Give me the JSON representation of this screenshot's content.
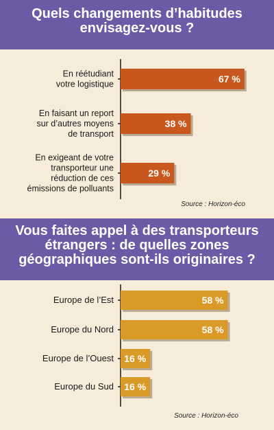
{
  "colors": {
    "background": "#f7ecda",
    "header": "#6b5aa6",
    "bar_chart1": "#c8581e",
    "bar_chart2": "#d99a27",
    "axis": "#1a1a1a"
  },
  "header1": {
    "line1": "Quels changements d’habitudes",
    "line2": "envisagez-vous ?"
  },
  "header2": {
    "line1": "Vous faites appel à des transporteurs",
    "line2": "étrangers : de quelles zones",
    "line3": "géographiques sont-ils originaires ?"
  },
  "source1": "Source : Horizon-éco",
  "source2": "Source : Horizon-éco",
  "chart_data": [
    {
      "type": "bar",
      "orientation": "horizontal",
      "categories": [
        [
          "En réétudiant",
          "votre logistique"
        ],
        [
          "En faisant un report",
          "sur d’autres moyens",
          "de transport"
        ],
        [
          "En exigeant de votre",
          "transporteur une",
          "réduction de ces",
          "émissions de polluants"
        ]
      ],
      "values": [
        67,
        38,
        29
      ],
      "value_labels": [
        "67 %",
        "38 %",
        "29 %"
      ],
      "xlim": [
        0,
        100
      ]
    },
    {
      "type": "bar",
      "orientation": "horizontal",
      "categories": [
        [
          "Europe de l’Est"
        ],
        [
          "Europe du Nord"
        ],
        [
          "Europe de l’Ouest"
        ],
        [
          "Europe du Sud"
        ]
      ],
      "values": [
        58,
        58,
        16,
        16
      ],
      "value_labels": [
        "58 %",
        "58 %",
        "16 %",
        "16 %"
      ],
      "xlim": [
        0,
        100
      ]
    }
  ]
}
